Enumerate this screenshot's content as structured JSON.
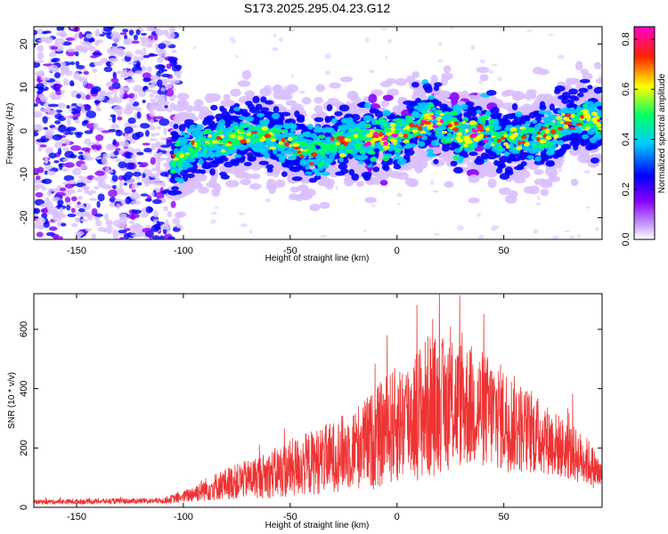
{
  "title": "S173.2025.295.04.23.G12",
  "chart_data": [
    {
      "type": "heatmap",
      "xlabel": "Height of straight line (km)",
      "ylabel": "Frequency (Hz)",
      "xlim": [
        -170,
        96
      ],
      "ylim": [
        -25,
        24
      ],
      "xticks": [
        -150,
        -100,
        -50,
        0,
        50
      ],
      "yticks": [
        20,
        10,
        0,
        -10,
        -20
      ],
      "colorbar": {
        "label": "Normalized spectral amplitude",
        "range": [
          0.0,
          0.85
        ],
        "ticks": [
          "0.0",
          "0.2",
          "0.4",
          "0.6",
          "0.8"
        ],
        "tick_values": [
          0.0,
          0.2,
          0.4,
          0.6,
          0.8
        ],
        "colors": [
          "#ffffff",
          "#9900ff",
          "#0000ff",
          "#00ffff",
          "#00ff00",
          "#ffff00",
          "#ff0000",
          "#ff00ff"
        ]
      },
      "ridge": {
        "x": [
          -105,
          -100,
          -90,
          -80,
          -70,
          -60,
          -50,
          -40,
          -30,
          -20,
          -10,
          0,
          10,
          15,
          20,
          30,
          35,
          40,
          50,
          60,
          70,
          80,
          90,
          96
        ],
        "y": [
          -7,
          -5,
          -3,
          -2,
          -1,
          -1,
          -3,
          -5,
          -3,
          -2,
          -2,
          -1,
          1,
          3,
          2,
          -1,
          -1,
          0,
          -2,
          -2,
          -1,
          2,
          3,
          2
        ]
      }
    },
    {
      "type": "line",
      "xlabel": "Height of straight line (km)",
      "ylabel": "SNR (10 * v/v)",
      "xlim": [
        -170,
        96
      ],
      "ylim": [
        0,
        720
      ],
      "xticks": [
        -150,
        -100,
        -50,
        0,
        50
      ],
      "yticks": [
        600,
        400,
        200,
        0
      ],
      "color": "#ee3333",
      "series": [
        {
          "name": "SNR",
          "envelope_x": [
            -170,
            -110,
            -100,
            -90,
            -80,
            -70,
            -60,
            -50,
            -40,
            -30,
            -20,
            -10,
            -5,
            0,
            5,
            10,
            15,
            20,
            30,
            40,
            50,
            60,
            70,
            80,
            90,
            96
          ],
          "envelope_mean": [
            18,
            22,
            35,
            60,
            80,
            95,
            110,
            130,
            150,
            170,
            200,
            230,
            260,
            280,
            300,
            320,
            340,
            345,
            350,
            330,
            300,
            260,
            230,
            190,
            150,
            100
          ],
          "envelope_amp": [
            8,
            10,
            20,
            40,
            55,
            65,
            80,
            100,
            110,
            120,
            140,
            170,
            190,
            200,
            210,
            230,
            250,
            230,
            220,
            200,
            180,
            150,
            120,
            100,
            80,
            50
          ]
        }
      ]
    }
  ]
}
